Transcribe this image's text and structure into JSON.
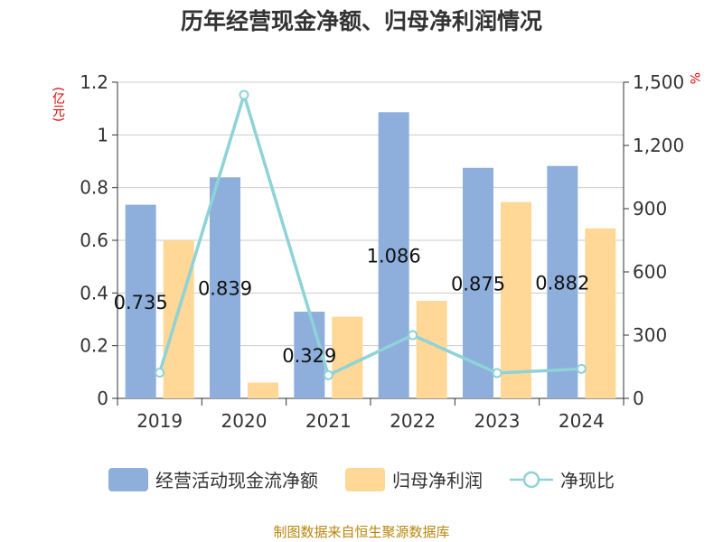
{
  "title": "历年经营现金净额、归母净利润情况",
  "left_unit": "(亿元)",
  "right_unit": "%",
  "source": "制图数据来自恒生聚源数据库",
  "colors": {
    "bar1": "#8eaedc",
    "bar2": "#ffd796",
    "line": "#8dd3d7",
    "grid": "#cccccc",
    "axis": "#333333",
    "unit": "#e00000"
  },
  "chart_data": {
    "type": "bar",
    "categories": [
      "2019",
      "2020",
      "2021",
      "2022",
      "2023",
      "2024"
    ],
    "series": [
      {
        "name": "经营活动现金流净额",
        "axis": "left",
        "values": [
          0.735,
          0.839,
          0.329,
          1.086,
          0.875,
          0.882
        ],
        "labels": [
          "0.735",
          "0.839",
          "0.329",
          "1.086",
          "0.875",
          "0.882"
        ]
      },
      {
        "name": "归母净利润",
        "axis": "left",
        "values": [
          0.6,
          0.06,
          0.31,
          0.37,
          0.745,
          0.645
        ]
      },
      {
        "name": "净现比",
        "type": "line",
        "axis": "right",
        "values": [
          122,
          1440,
          110,
          300,
          120,
          140
        ]
      }
    ],
    "yleft": {
      "min": 0,
      "max": 1.2,
      "ticks": [
        "0",
        "0.2",
        "0.4",
        "0.6",
        "0.8",
        "1",
        "1.2"
      ]
    },
    "yright": {
      "min": 0,
      "max": 1500,
      "ticks": [
        "0",
        "300",
        "600",
        "900",
        "1,200",
        "1,500"
      ]
    },
    "grid": true,
    "legend_position": "bottom"
  }
}
